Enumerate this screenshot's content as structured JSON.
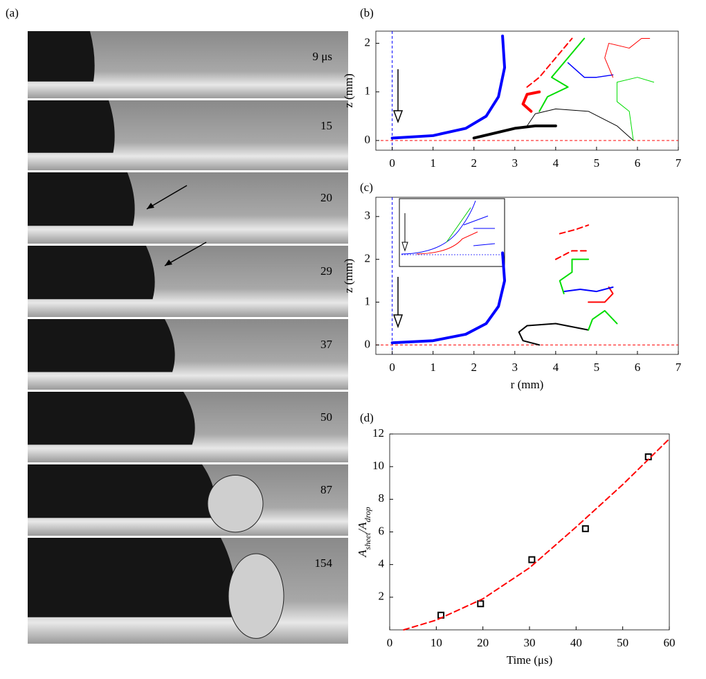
{
  "panel_labels": [
    "(a)",
    "(b)",
    "(c)",
    "(d)"
  ],
  "photo_frames": [
    "9 μs",
    "15",
    "20",
    "29",
    "37",
    "50",
    "87",
    "154"
  ],
  "chart_data": [
    {
      "type": "line",
      "ylabel": "z (mm)",
      "xlim": [
        -0.4,
        7
      ],
      "ylim": [
        -0.2,
        2.25
      ],
      "xticks": [
        0,
        1,
        2,
        3,
        4,
        5,
        6,
        7
      ],
      "yticks": [
        0,
        1,
        2
      ],
      "series": [
        {
          "color": "#0000ff",
          "width": 4,
          "style": "solid",
          "x": [
            0,
            1,
            1.8,
            2.3,
            2.6,
            2.75,
            2.7
          ],
          "values": [
            0.05,
            0.1,
            0.25,
            0.5,
            0.9,
            1.5,
            2.15
          ]
        },
        {
          "color": "#000000",
          "width": 4,
          "style": "solid",
          "x": [
            2,
            2.5,
            3,
            3.5,
            4
          ],
          "values": [
            0.05,
            0.15,
            0.25,
            0.3,
            0.3
          ]
        },
        {
          "color": "#000000",
          "width": 1,
          "style": "solid",
          "x": [
            3.3,
            3.5,
            4,
            4.8,
            5.5,
            5.9
          ],
          "values": [
            0.3,
            0.55,
            0.65,
            0.6,
            0.3,
            0
          ]
        },
        {
          "color": "#ff0000",
          "width": 4,
          "style": "solid",
          "x": [
            3.4,
            3.2,
            3.3,
            3.6
          ],
          "values": [
            0.6,
            0.75,
            0.95,
            1.0
          ]
        },
        {
          "color": "#ff0000",
          "width": 2,
          "style": "dashed",
          "x": [
            3.3,
            3.6,
            3.8,
            4.1,
            4.4
          ],
          "values": [
            1.1,
            1.3,
            1.5,
            1.8,
            2.1
          ]
        },
        {
          "color": "#00dd00",
          "width": 2,
          "style": "solid",
          "x": [
            3.6,
            3.8,
            4.3,
            3.9,
            4.3,
            4.7
          ],
          "values": [
            0.6,
            0.9,
            1.1,
            1.3,
            1.7,
            2.1
          ]
        },
        {
          "color": "#0000ff",
          "width": 1.5,
          "style": "solid",
          "x": [
            4.3,
            4.7,
            5.0,
            5.4
          ],
          "values": [
            1.6,
            1.3,
            1.3,
            1.35
          ]
        },
        {
          "color": "#ff0000",
          "width": 1,
          "style": "solid",
          "x": [
            5.4,
            5.2,
            5.3,
            5.8,
            6.1,
            6.3
          ],
          "values": [
            1.3,
            1.7,
            2.0,
            1.9,
            2.1,
            2.1
          ]
        },
        {
          "color": "#00dd00",
          "width": 1,
          "style": "solid",
          "x": [
            5.9,
            5.8,
            5.5,
            5.5,
            6.0,
            6.4
          ],
          "values": [
            0,
            0.6,
            0.8,
            1.2,
            1.3,
            1.2
          ]
        }
      ]
    },
    {
      "type": "line",
      "xlabel": "r (mm)",
      "ylabel": "z (mm)",
      "xlim": [
        -0.4,
        7
      ],
      "ylim": [
        -0.22,
        3.45
      ],
      "xticks": [
        0,
        1,
        2,
        3,
        4,
        5,
        6,
        7
      ],
      "yticks": [
        0,
        1,
        2,
        3
      ],
      "series": [
        {
          "color": "#0000ff",
          "width": 4,
          "style": "solid",
          "x": [
            0,
            1,
            1.8,
            2.3,
            2.6,
            2.75,
            2.7
          ],
          "values": [
            0.05,
            0.1,
            0.25,
            0.5,
            0.9,
            1.5,
            2.15
          ]
        },
        {
          "color": "#000000",
          "width": 2,
          "style": "solid",
          "x": [
            3.6,
            3.2,
            3.1,
            3.3,
            4,
            4.8
          ],
          "values": [
            0,
            0.1,
            0.3,
            0.45,
            0.5,
            0.35
          ]
        },
        {
          "color": "#00dd00",
          "width": 2,
          "style": "solid",
          "x": [
            4.8,
            4.9,
            5.2,
            5.3,
            5.5
          ],
          "values": [
            0.35,
            0.6,
            0.8,
            0.7,
            0.5
          ]
        },
        {
          "color": "#ff0000",
          "width": 2,
          "style": "solid",
          "x": [
            4.8,
            5.2,
            5.4,
            5.3
          ],
          "values": [
            1.0,
            1.0,
            1.2,
            1.35
          ]
        },
        {
          "color": "#0000ff",
          "width": 2,
          "style": "solid",
          "x": [
            4.2,
            4.6,
            5.0,
            5.4
          ],
          "values": [
            1.25,
            1.3,
            1.25,
            1.35
          ]
        },
        {
          "color": "#00dd00",
          "width": 2,
          "style": "solid",
          "x": [
            4.2,
            4.1,
            4.4,
            4.4,
            4.8
          ],
          "values": [
            1.2,
            1.5,
            1.7,
            2.0,
            2.0
          ]
        },
        {
          "color": "#ff0000",
          "width": 2,
          "style": "dashed",
          "x": [
            4.0,
            4.4,
            4.8
          ],
          "values": [
            2.0,
            2.2,
            2.2
          ]
        },
        {
          "color": "#ff0000",
          "width": 2,
          "style": "dashed",
          "x": [
            4.1,
            4.5,
            4.8
          ],
          "values": [
            2.6,
            2.7,
            2.8
          ]
        }
      ]
    },
    {
      "type": "scatter",
      "xlabel": "Time (μs)",
      "ylabel": [
        "A",
        "sheet",
        "/A",
        "drop"
      ],
      "xlim": [
        0,
        60
      ],
      "ylim": [
        0,
        12
      ],
      "xticks": [
        0,
        10,
        20,
        30,
        40,
        50,
        60
      ],
      "yticks": [
        2,
        4,
        6,
        8,
        10,
        12
      ],
      "series": [
        {
          "color": "#000000",
          "style": "markers",
          "x": [
            11,
            19.5,
            30.5,
            42,
            55.5
          ],
          "values": [
            0.9,
            1.6,
            4.3,
            6.2,
            10.6
          ]
        },
        {
          "color": "#ff0000",
          "width": 2,
          "style": "dashed",
          "x": [
            3,
            10,
            20,
            30,
            40,
            50,
            60
          ],
          "values": [
            0,
            0.6,
            1.9,
            3.8,
            6.3,
            8.9,
            11.7
          ]
        }
      ]
    }
  ]
}
